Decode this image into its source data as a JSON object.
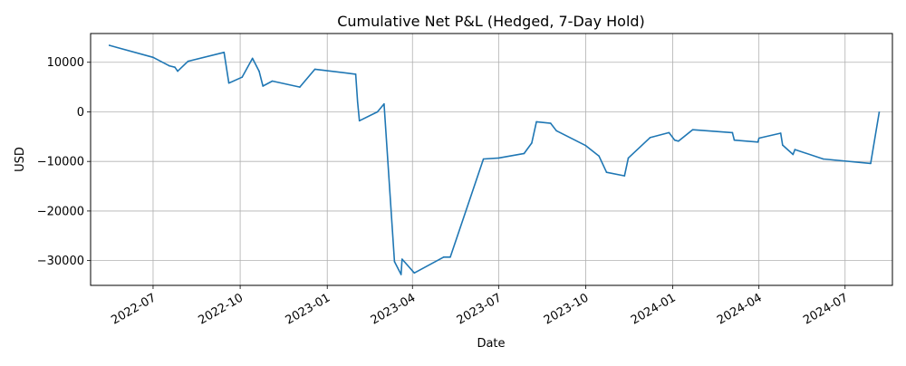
{
  "chart_data": {
    "type": "line",
    "title": "Cumulative Net P&L (Hedged, 7-Day Hold)",
    "xlabel": "Date",
    "ylabel": "USD",
    "grid": true,
    "line_color": "#1f77b4",
    "xlim": [
      "2022-04-26",
      "2024-08-20"
    ],
    "ylim": [
      -35000,
      15800
    ],
    "x_ticks": [
      {
        "date": "2022-07-01",
        "label": "2022-07"
      },
      {
        "date": "2022-10-01",
        "label": "2022-10"
      },
      {
        "date": "2023-01-01",
        "label": "2023-01"
      },
      {
        "date": "2023-04-01",
        "label": "2023-04"
      },
      {
        "date": "2023-07-01",
        "label": "2023-07"
      },
      {
        "date": "2023-10-01",
        "label": "2023-10"
      },
      {
        "date": "2024-01-01",
        "label": "2024-01"
      },
      {
        "date": "2024-04-01",
        "label": "2024-04"
      },
      {
        "date": "2024-07-01",
        "label": "2024-07"
      }
    ],
    "y_ticks": [
      {
        "value": 10000,
        "label": "10000"
      },
      {
        "value": 0,
        "label": "0"
      },
      {
        "value": -10000,
        "label": "−10000"
      },
      {
        "value": -20000,
        "label": "−20000"
      },
      {
        "value": -30000,
        "label": "−30000"
      }
    ],
    "series": [
      {
        "points": [
          [
            "2022-05-16",
            13400
          ],
          [
            "2022-07-01",
            11000
          ],
          [
            "2022-07-18",
            9300
          ],
          [
            "2022-07-24",
            9000
          ],
          [
            "2022-07-27",
            8200
          ],
          [
            "2022-08-07",
            10200
          ],
          [
            "2022-09-14",
            12000
          ],
          [
            "2022-09-19",
            5800
          ],
          [
            "2022-10-03",
            7000
          ],
          [
            "2022-10-14",
            10800
          ],
          [
            "2022-10-21",
            8200
          ],
          [
            "2022-10-25",
            5200
          ],
          [
            "2022-11-04",
            6200
          ],
          [
            "2022-12-03",
            5000
          ],
          [
            "2022-12-19",
            8600
          ],
          [
            "2023-01-31",
            7600
          ],
          [
            "2023-02-02",
            2000
          ],
          [
            "2023-02-04",
            -1800
          ],
          [
            "2023-02-23",
            0
          ],
          [
            "2023-03-02",
            1600
          ],
          [
            "2023-03-13",
            -30200
          ],
          [
            "2023-03-20",
            -32800
          ],
          [
            "2023-03-21",
            -29700
          ],
          [
            "2023-04-03",
            -32500
          ],
          [
            "2023-05-04",
            -29300
          ],
          [
            "2023-05-11",
            -29300
          ],
          [
            "2023-06-15",
            -9500
          ],
          [
            "2023-07-01",
            -9300
          ],
          [
            "2023-07-28",
            -8400
          ],
          [
            "2023-08-05",
            -6300
          ],
          [
            "2023-08-10",
            -2000
          ],
          [
            "2023-08-25",
            -2300
          ],
          [
            "2023-08-31",
            -3800
          ],
          [
            "2023-10-01",
            -6800
          ],
          [
            "2023-10-15",
            -8900
          ],
          [
            "2023-10-23",
            -12200
          ],
          [
            "2023-11-11",
            -12900
          ],
          [
            "2023-11-15",
            -9300
          ],
          [
            "2023-12-08",
            -5200
          ],
          [
            "2023-12-28",
            -4200
          ],
          [
            "2024-01-03",
            -5700
          ],
          [
            "2024-01-07",
            -5900
          ],
          [
            "2024-01-22",
            -3600
          ],
          [
            "2024-03-04",
            -4200
          ],
          [
            "2024-03-06",
            -5700
          ],
          [
            "2024-03-31",
            -6100
          ],
          [
            "2024-04-01",
            -5300
          ],
          [
            "2024-04-24",
            -4300
          ],
          [
            "2024-04-26",
            -6700
          ],
          [
            "2024-05-07",
            -8600
          ],
          [
            "2024-05-09",
            -7600
          ],
          [
            "2024-06-08",
            -9500
          ],
          [
            "2024-07-28",
            -10400
          ],
          [
            "2024-08-06",
            -100
          ]
        ]
      }
    ]
  }
}
